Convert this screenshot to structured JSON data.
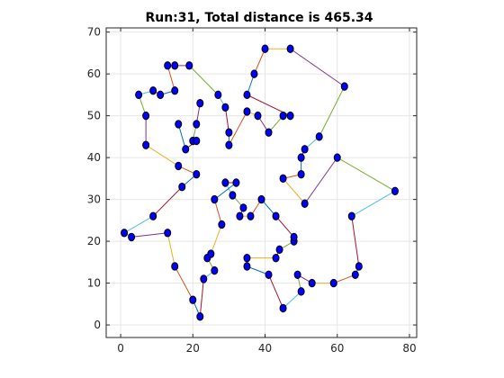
{
  "chart_data": {
    "type": "scatter",
    "title": "Run:31, Total distance is 465.34",
    "xlabel": "",
    "ylabel": "",
    "xlim": [
      -4,
      82
    ],
    "ylim": [
      -3,
      71
    ],
    "xticks": [
      0,
      20,
      40,
      60,
      80
    ],
    "yticks": [
      0,
      10,
      20,
      30,
      40,
      50,
      60,
      70
    ],
    "grid": true,
    "marker": "filled circle",
    "marker_color": "#0000ff",
    "route": [
      [
        22,
        2
      ],
      [
        20,
        6
      ],
      [
        15,
        14
      ],
      [
        13,
        22
      ],
      [
        3,
        21
      ],
      [
        1,
        22
      ],
      [
        9,
        26
      ],
      [
        17,
        33
      ],
      [
        21,
        36
      ],
      [
        16,
        38
      ],
      [
        7,
        43
      ],
      [
        7,
        50
      ],
      [
        5,
        55
      ],
      [
        9,
        56
      ],
      [
        11,
        55
      ],
      [
        15,
        56
      ],
      [
        13,
        62
      ],
      [
        15,
        62
      ],
      [
        19,
        62
      ],
      [
        27,
        55
      ],
      [
        29,
        52
      ],
      [
        30,
        46
      ],
      [
        30,
        43
      ],
      [
        35,
        51
      ],
      [
        38,
        50
      ],
      [
        41,
        46
      ],
      [
        45,
        50
      ],
      [
        47,
        50
      ],
      [
        35,
        55
      ],
      [
        37,
        60
      ],
      [
        40,
        66
      ],
      [
        47,
        66
      ],
      [
        62,
        57
      ],
      [
        55,
        45
      ],
      [
        51,
        42
      ],
      [
        50,
        40
      ],
      [
        50,
        36
      ],
      [
        45,
        35
      ],
      [
        51,
        29
      ],
      [
        60,
        40
      ],
      [
        76,
        32
      ],
      [
        64,
        26
      ],
      [
        66,
        14
      ],
      [
        65,
        12
      ],
      [
        59,
        10
      ],
      [
        53,
        10
      ],
      [
        49,
        12
      ],
      [
        50,
        8
      ],
      [
        45,
        4
      ],
      [
        41,
        12
      ],
      [
        35,
        14
      ],
      [
        35,
        16
      ],
      [
        43,
        16
      ],
      [
        44,
        18
      ],
      [
        48,
        20
      ],
      [
        48,
        21
      ],
      [
        43,
        26
      ],
      [
        39,
        30
      ],
      [
        36,
        26
      ],
      [
        33,
        26
      ],
      [
        34,
        28
      ],
      [
        31,
        31
      ],
      [
        29,
        34
      ],
      [
        32,
        34
      ],
      [
        26,
        30
      ],
      [
        28,
        24
      ],
      [
        25,
        17
      ],
      [
        24,
        16
      ],
      [
        26,
        13
      ],
      [
        23,
        11
      ]
    ],
    "extra_points": [
      [
        18,
        42
      ],
      [
        20,
        44
      ],
      [
        21,
        44
      ],
      [
        21,
        48
      ],
      [
        22,
        53
      ],
      [
        16,
        48
      ]
    ],
    "extra_route": [
      [
        22,
        53
      ],
      [
        21,
        48
      ],
      [
        20,
        44
      ],
      [
        21,
        44
      ],
      [
        18,
        42
      ],
      [
        16,
        48
      ]
    ]
  }
}
